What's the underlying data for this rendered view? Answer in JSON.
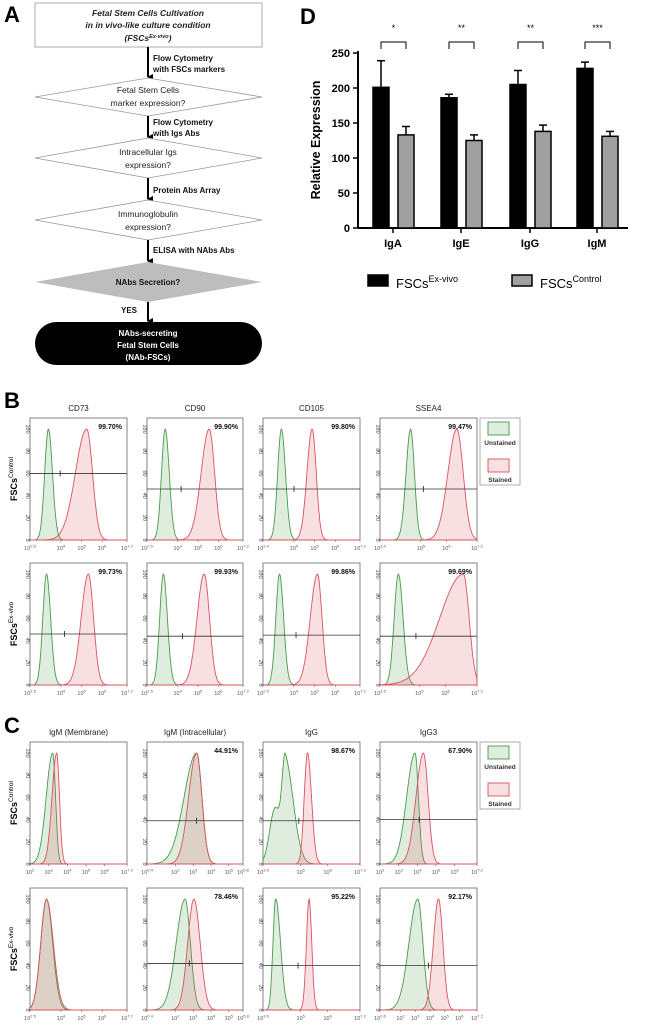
{
  "panel_labels": {
    "a": "A",
    "b": "B",
    "c": "C",
    "d": "D"
  },
  "flowchart": {
    "start": [
      "Fetal Stem Cells Cultivation",
      "in in vivo-like culture condition",
      "(FSCs",
      "Ex-vivo",
      ")"
    ],
    "steps": [
      {
        "arrow": [
          "Flow Cytometry",
          "with FSCs markers"
        ],
        "decision": [
          "Fetal Stem Cells",
          "marker expression?"
        ]
      },
      {
        "arrow": [
          "Flow Cytometry",
          "with Igs Abs"
        ],
        "decision": [
          "Intracellular Igs",
          "expression?"
        ]
      },
      {
        "arrow": [
          "Protein Abs Array"
        ],
        "decision": [
          "Immunoglobulin",
          "expression?"
        ]
      },
      {
        "arrow": [
          "ELISA with NAbs Abs"
        ],
        "decision": [
          "NAbs Secretion?"
        ]
      }
    ],
    "yes_label": "YES",
    "end": [
      "NAbs-secreting",
      "Fetal Stem Cells",
      "(NAb-FSCs)"
    ],
    "colors": {
      "decision_final": "#bdbdbd",
      "terminal": "#000000"
    }
  },
  "row_labels": {
    "base": "FSCs",
    "control": "Control",
    "exvivo": "Ex-vivo"
  },
  "legend": {
    "unstained": "Unstained",
    "stained": "Stained",
    "colors": {
      "unstained": "#4a9a4a",
      "stained": "#d9535f"
    }
  },
  "tick_base": "10",
  "y_ticks": [
    "0",
    "20",
    "40",
    "60",
    "80",
    "100"
  ],
  "chart_data": [
    {
      "type": "bar",
      "panel": "D",
      "categories": [
        "IgA",
        "IgE",
        "IgG",
        "IgM"
      ],
      "ylabel": "Relative Expression",
      "ylim": [
        0,
        250
      ],
      "yticks": [
        "0",
        "50",
        "100",
        "150",
        "200",
        "250"
      ],
      "significance": [
        "*",
        "**",
        "**",
        "***"
      ],
      "series": [
        {
          "name_base": "FSCs",
          "name_sup": "Ex-vivo",
          "color": "#000000",
          "values": [
            201,
            186,
            205,
            228
          ],
          "errors": [
            38,
            5,
            20,
            9
          ]
        },
        {
          "name_base": "FSCs",
          "name_sup": "Control",
          "color": "#a0a0a0",
          "values": [
            133,
            125,
            138,
            131
          ],
          "errors": [
            12,
            8,
            9,
            7
          ]
        }
      ]
    },
    {
      "type": "histogram",
      "panel": "B",
      "titles": [
        "CD73",
        "CD90",
        "CD105",
        "SSEA4"
      ],
      "rows": [
        [
          {
            "xlim": [
              2.5,
              7.2
            ],
            "ticks": [
              "2.5",
              "4",
              "5",
              "6",
              "7.2"
            ],
            "pct": "99.70%",
            "gate_y": 60,
            "gate_x": 3.96,
            "unstained": [
              [
                3.39,
                0.18,
                0.2,
                1
              ]
            ],
            "stained": [
              [
                5.25,
                0.55,
                0.28,
                1
              ]
            ]
          },
          {
            "xlim": [
              2.5,
              7.2
            ],
            "ticks": [
              "2.5",
              "4",
              "5",
              "6",
              "7.2"
            ],
            "pct": "99.90%",
            "gate_y": 46,
            "gate_x": 4.17,
            "unstained": [
              [
                3.39,
                0.18,
                0.2,
                1
              ]
            ],
            "stained": [
              [
                5.55,
                0.4,
                0.26,
                1
              ]
            ]
          },
          {
            "xlim": [
              2.5,
              7.2
            ],
            "ticks": [
              "2.5",
              "4",
              "5",
              "6",
              "7.2"
            ],
            "pct": "99.80%",
            "gate_y": 46,
            "gate_x": 4.0,
            "unstained": [
              [
                3.39,
                0.18,
                0.2,
                1
              ]
            ],
            "stained": [
              [
                4.88,
                0.25,
                0.2,
                1
              ]
            ]
          },
          {
            "xlim": [
              3.4,
              7.2
            ],
            "ticks": [
              "3.4",
              "5",
              "6",
              "7.2"
            ],
            "pct": "99.47%",
            "gate_y": 46,
            "gate_x": 5.1,
            "unstained": [
              [
                4.6,
                0.18,
                0.15,
                1
              ]
            ],
            "stained": [
              [
                6.41,
                0.35,
                0.25,
                1
              ]
            ]
          }
        ],
        [
          {
            "xlim": [
              2.5,
              7.2
            ],
            "ticks": [
              "2.5",
              "4",
              "5",
              "6",
              "7.2"
            ],
            "pct": "99.73%",
            "gate_y": 46,
            "gate_x": 4.17,
            "unstained": [
              [
                3.3,
                0.18,
                0.2,
                1
              ]
            ],
            "stained": [
              [
                5.33,
                0.35,
                0.25,
                1
              ]
            ]
          },
          {
            "xlim": [
              2.5,
              7.2
            ],
            "ticks": [
              "2.5",
              "4",
              "5",
              "6",
              "7.2"
            ],
            "pct": "99.93%",
            "gate_y": 44,
            "gate_x": 4.24,
            "unstained": [
              [
                3.3,
                0.18,
                0.2,
                1
              ]
            ],
            "stained": [
              [
                5.3,
                0.35,
                0.26,
                1
              ]
            ]
          },
          {
            "xlim": [
              2.5,
              7.2
            ],
            "ticks": [
              "2.5",
              "4",
              "5",
              "6",
              "7.2"
            ],
            "pct": "99.86%",
            "gate_y": 45,
            "gate_x": 4.1,
            "unstained": [
              [
                3.3,
                0.18,
                0.2,
                1
              ]
            ],
            "stained": [
              [
                5.14,
                0.35,
                0.22,
                1
              ]
            ]
          },
          {
            "xlim": [
              3.5,
              7.2
            ],
            "ticks": [
              "3.5",
              "5",
              "6",
              "7.2"
            ],
            "pct": "99.69%",
            "gate_y": 44,
            "gate_x": 4.87,
            "unstained": [
              [
                4.2,
                0.16,
                0.18,
                1
              ]
            ],
            "stained": [
              [
                6.68,
                0.9,
                0.22,
                1
              ]
            ]
          }
        ]
      ]
    },
    {
      "type": "histogram",
      "panel": "C",
      "titles": [
        "IgM (Membrane)",
        "IgM (Intracellular)",
        "IgG",
        "IgG3"
      ],
      "rows": [
        [
          {
            "xlim": [
              2,
              7.2
            ],
            "ticks": [
              "2",
              "3",
              "4",
              "5",
              "6",
              "7.2"
            ],
            "pct": "",
            "gate_y": null,
            "gate_x": null,
            "unstained": [
              [
                3.22,
                0.35,
                0.15,
                1
              ]
            ],
            "stained": [
              [
                3.43,
                0.25,
                0.15,
                1
              ]
            ]
          },
          {
            "xlim": [
              0.4,
              5.8
            ],
            "ticks": [
              "0.4",
              "2",
              "3",
              "4",
              "5",
              "5.8"
            ],
            "pct": "44.91%",
            "gate_y": 39,
            "gate_x": 3.19,
            "unstained": [
              [
                3.19,
                0.7,
                0.3,
                1
              ]
            ],
            "stained": [
              [
                3.19,
                0.45,
                0.3,
                1
              ]
            ]
          },
          {
            "xlim": [
              3.6,
              7.2
            ],
            "ticks": [
              "3.6",
              "5",
              "6",
              "7.2"
            ],
            "pct": "98.67%",
            "gate_y": 39,
            "gate_x": 4.93,
            "unstained": [
              [
                4.43,
                0.12,
                0.3,
                1
              ],
              [
                4.05,
                0.2,
                0.2,
                0.55
              ]
            ],
            "stained": [
              [
                5.25,
                0.12,
                0.15,
                1
              ]
            ]
          },
          {
            "xlim": [
              2,
              7.2
            ],
            "ticks": [
              "2",
              "3",
              "4",
              "5",
              "6",
              "7.2"
            ],
            "pct": "67.90%",
            "gate_y": 40,
            "gate_x": 4.1,
            "unstained": [
              [
                3.88,
                0.45,
                0.18,
                1
              ]
            ],
            "stained": [
              [
                4.33,
                0.4,
                0.25,
                1
              ]
            ]
          }
        ],
        [
          {
            "xlim": [
              2.5,
              7.2
            ],
            "ticks": [
              "2.5",
              "4",
              "5",
              "6",
              "7.2"
            ],
            "pct": "",
            "gate_y": null,
            "gate_x": null,
            "unstained": [
              [
                3.3,
                0.28,
                0.3,
                1
              ]
            ],
            "stained": [
              [
                3.3,
                0.28,
                0.33,
                1
              ]
            ]
          },
          {
            "xlim": [
              0.4,
              5.8
            ],
            "ticks": [
              "0.4",
              "2",
              "3",
              "4",
              "5",
              "5.8"
            ],
            "pct": "78.46%",
            "gate_y": 42,
            "gate_x": 2.78,
            "unstained": [
              [
                2.54,
                0.5,
                0.3,
                1
              ]
            ],
            "stained": [
              [
                3.04,
                0.35,
                0.35,
                1
              ]
            ]
          },
          {
            "xlim": [
              3.6,
              7.2
            ],
            "ticks": [
              "3.6",
              "5",
              "6",
              "7.2"
            ],
            "pct": "95.22%",
            "gate_y": 40,
            "gate_x": 4.9,
            "unstained": [
              [
                4.07,
                0.1,
                0.18,
                1
              ]
            ],
            "stained": [
              [
                5.31,
                0.1,
                0.1,
                1
              ]
            ]
          },
          {
            "xlim": [
              0.6,
              7.2
            ],
            "ticks": [
              "0.6",
              "2",
              "3",
              "4",
              "5",
              "6",
              "7.2"
            ],
            "pct": "92.17%",
            "gate_y": 40,
            "gate_x": 3.9,
            "unstained": [
              [
                3.17,
                0.6,
                0.35,
                1
              ]
            ],
            "stained": [
              [
                4.58,
                0.35,
                0.3,
                1
              ]
            ]
          }
        ]
      ]
    }
  ]
}
